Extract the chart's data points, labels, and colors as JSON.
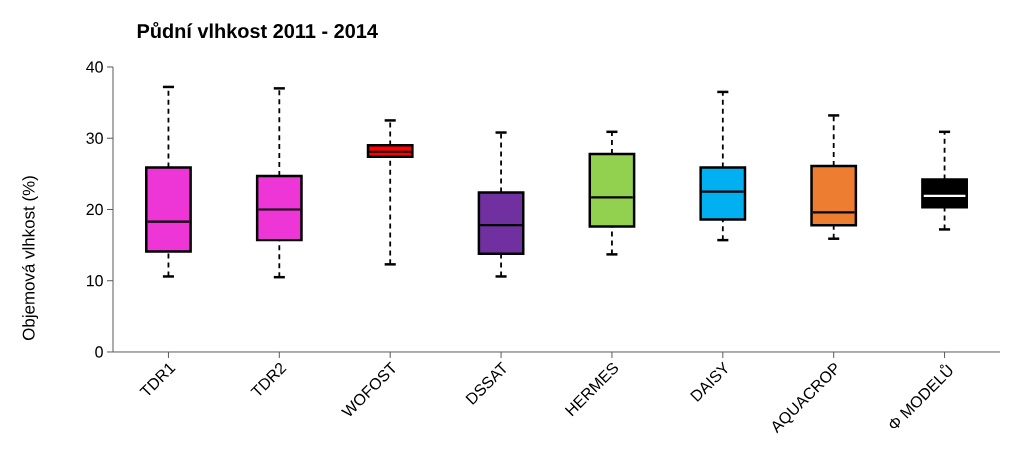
{
  "chart_data": {
    "type": "box",
    "title": "Půdní vlhkost 2011 - 2014",
    "ylabel": "Objemová vlhkost (%)",
    "categories": [
      "TDR1",
      "TDR2",
      "WOFOST",
      "DSSAT",
      "HERMES",
      "DAISY",
      "AQUACROP",
      "Φ MODELŮ"
    ],
    "colors": [
      "#ee35d6",
      "#ee35d6",
      "#ff0000",
      "#7030a0",
      "#92d050",
      "#00b0f0",
      "#ed7d31",
      "#000000"
    ],
    "boxes": [
      {
        "low": 10.6,
        "q1": 14.1,
        "median": 18.3,
        "q3": 25.9,
        "high": 37.2
      },
      {
        "low": 10.5,
        "q1": 15.7,
        "median": 20.0,
        "q3": 24.7,
        "high": 37.0
      },
      {
        "low": 12.3,
        "q1": 27.4,
        "median": 28.1,
        "q3": 29.0,
        "high": 32.5
      },
      {
        "low": 10.6,
        "q1": 13.8,
        "median": 17.8,
        "q3": 22.4,
        "high": 30.8
      },
      {
        "low": 13.7,
        "q1": 17.6,
        "median": 21.7,
        "q3": 27.8,
        "high": 30.9
      },
      {
        "low": 15.7,
        "q1": 18.6,
        "median": 22.5,
        "q3": 25.9,
        "high": 36.5
      },
      {
        "low": 15.9,
        "q1": 17.8,
        "median": 19.6,
        "q3": 26.1,
        "high": 33.2
      },
      {
        "low": 17.2,
        "q1": 20.3,
        "median": 21.9,
        "q3": 24.2,
        "high": 30.9
      }
    ],
    "ylim": [
      0,
      40
    ],
    "yticks": [
      0,
      10,
      20,
      30,
      40
    ]
  }
}
